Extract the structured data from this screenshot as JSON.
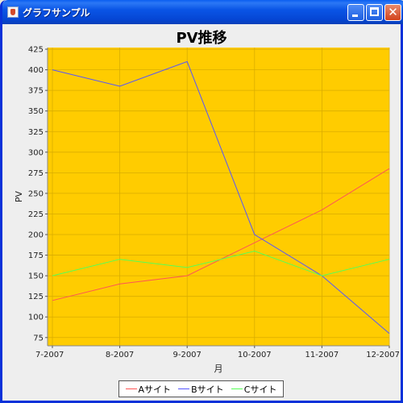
{
  "window": {
    "title": "グラフサンプル",
    "icon": "java-cup-icon",
    "controls": [
      "minimize",
      "maximize",
      "close"
    ]
  },
  "chart_data": {
    "type": "line",
    "title": "PV推移",
    "xlabel": "月",
    "ylabel": "PV",
    "categories": [
      "7-2007",
      "8-2007",
      "9-2007",
      "10-2007",
      "11-2007",
      "12-2007"
    ],
    "ylim": [
      65,
      427
    ],
    "yticks": [
      75,
      100,
      125,
      150,
      175,
      200,
      225,
      250,
      275,
      300,
      325,
      350,
      375,
      400,
      425
    ],
    "grid": true,
    "legend_position": "bottom",
    "plot_background": "#ffcc00",
    "series": [
      {
        "name": "Aサイト",
        "color": "#ff5555",
        "values": [
          120,
          140,
          150,
          190,
          230,
          280
        ]
      },
      {
        "name": "Bサイト",
        "color": "#5555ff",
        "values": [
          400,
          380,
          410,
          200,
          150,
          80
        ]
      },
      {
        "name": "Cサイト",
        "color": "#55ff55",
        "values": [
          150,
          170,
          160,
          180,
          150,
          170
        ]
      }
    ]
  }
}
